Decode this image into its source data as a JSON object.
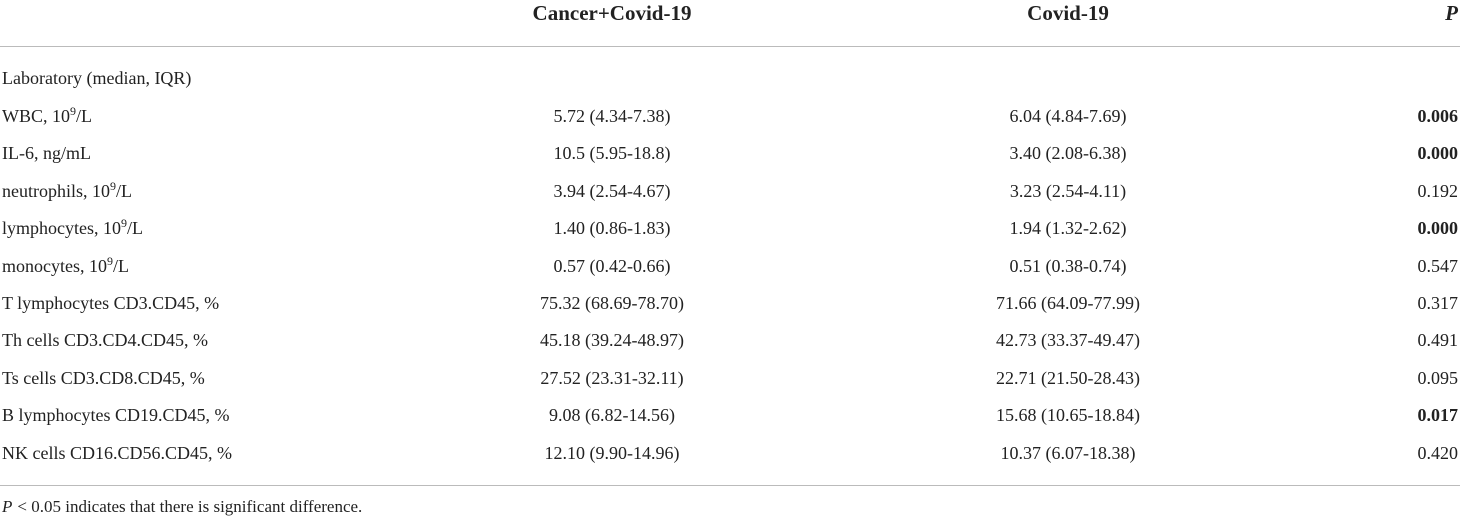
{
  "table": {
    "header": [
      "Cancer+Covid-19",
      "Covid-19",
      "P"
    ],
    "section": "Laboratory (median, IQR)",
    "rows": [
      {
        "name": "WBC, 10",
        "sup": "9",
        "unit": "/L",
        "cells": [
          "5.72 (4.34-7.38)",
          "6.04 (4.84-7.69)",
          "0.006"
        ],
        "bold": true
      },
      {
        "name": "IL-6, ng/mL",
        "cells": [
          "10.5 (5.95-18.8)",
          "3.40 (2.08-6.38)",
          "0.000"
        ],
        "bold": true
      },
      {
        "name": "neutrophils, 10",
        "sup": "9",
        "unit": "/L",
        "cells": [
          "3.94 (2.54-4.67)",
          "3.23 (2.54-4.11)",
          "0.192"
        ],
        "bold": false
      },
      {
        "name": "lymphocytes, 10",
        "sup": "9",
        "unit": "/L",
        "cells": [
          "1.40 (0.86-1.83)",
          "1.94 (1.32-2.62)",
          "0.000"
        ],
        "bold": true
      },
      {
        "name": "monocytes, 10",
        "sup": "9",
        "unit": "/L",
        "cells": [
          "0.57 (0.42-0.66)",
          "0.51 (0.38-0.74)",
          "0.547"
        ],
        "bold": false
      },
      {
        "name": "T lymphocytes CD3.CD45, %",
        "cells": [
          "75.32 (68.69-78.70)",
          "71.66 (64.09-77.99)",
          "0.317"
        ],
        "bold": false
      },
      {
        "name": "Th cells CD3.CD4.CD45, %",
        "cells": [
          "45.18 (39.24-48.97)",
          "42.73 (33.37-49.47)",
          "0.491"
        ],
        "bold": false
      },
      {
        "name": "Ts cells CD3.CD8.CD45, %",
        "cells": [
          "27.52 (23.31-32.11)",
          "22.71 (21.50-28.43)",
          "0.095"
        ],
        "bold": false
      },
      {
        "name": "B lymphocytes CD19.CD45, %",
        "cells": [
          "9.08 (6.82-14.56)",
          "15.68 (10.65-18.84)",
          "0.017"
        ],
        "bold": true
      },
      {
        "name": "NK cells CD16.CD56.CD45, %",
        "cells": [
          "12.10 (9.90-14.96)",
          "10.37 (6.07-18.38)",
          "0.420"
        ],
        "bold": false
      }
    ],
    "footnote": {
      "italic": "P",
      "text": "< 0.05 indicates that there is significant difference."
    }
  }
}
